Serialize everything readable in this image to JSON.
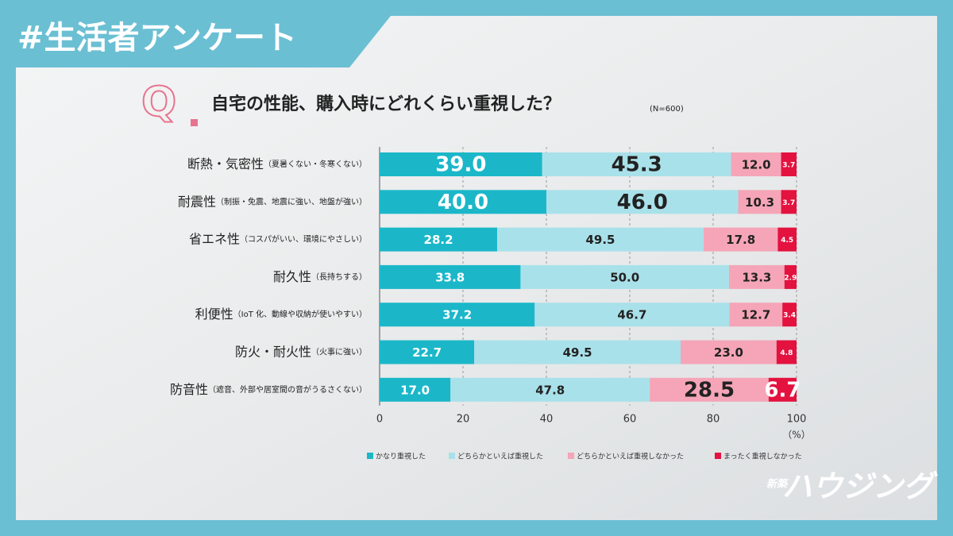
{
  "header": {
    "title": "#生活者アンケート"
  },
  "logo": {
    "small": "新築",
    "main": "ハウジング"
  },
  "chart_data": {
    "type": "stacked_bar_horizontal",
    "title": "自宅の性能、購入時にどれくらい重視した？",
    "subtitle": "(N=600)",
    "q_mark": "Q",
    "categories": [
      "断熱・気密性",
      "耐震性",
      "省エネ性",
      "耐久性",
      "利便性",
      "防火・耐火性",
      "防音性"
    ],
    "category_notes": [
      "（夏暑くない・冬寒くない）",
      "（制振・免震、地震に強い、地盤が強い）",
      "（コスパがいい、環境にやさしい）",
      "（長持ちする）",
      "（IoT 化、動線や収納が使いやすい）",
      "（火事に強い）",
      "（遮音、外部や居室間の音がうるさくない）"
    ],
    "series": [
      {
        "name": "かなり重視した",
        "color": "#1bb7c9",
        "values": [
          39.0,
          40.0,
          28.2,
          33.8,
          37.2,
          22.7,
          17.0
        ],
        "value_labels": [
          "39.0",
          "40.0",
          "28.2",
          "33.8",
          "37.2",
          "22.7",
          "17.0"
        ]
      },
      {
        "name": "どちらかといえば重視した",
        "color": "#a9e1ea",
        "values": [
          45.3,
          46.0,
          49.5,
          50.0,
          46.7,
          49.5,
          47.8
        ],
        "value_labels": [
          "45.3",
          "46.0",
          "49.5",
          "50.0",
          "46.7",
          "49.5",
          "47.8"
        ]
      },
      {
        "name": "どちらかといえば重視しなかった",
        "color": "#f5a5b7",
        "values": [
          12.0,
          10.3,
          17.8,
          13.3,
          12.7,
          23.0,
          28.5
        ],
        "value_labels": [
          "12.0",
          "10.3",
          "17.8",
          "13.3",
          "12.7",
          "23.0",
          "28.5"
        ]
      },
      {
        "name": "まったく重視しなかった",
        "color": "#e3123f",
        "values": [
          3.7,
          3.7,
          4.5,
          2.9,
          3.4,
          4.8,
          6.7
        ],
        "value_labels": [
          "3.7",
          "3.7",
          "4.5",
          "2.9",
          "3.4",
          "4.8",
          "6.7"
        ]
      }
    ],
    "xlim": [
      0,
      100
    ],
    "xticks": [
      0,
      20,
      40,
      60,
      80,
      100
    ],
    "x_unit": "（%）",
    "grid": true
  }
}
